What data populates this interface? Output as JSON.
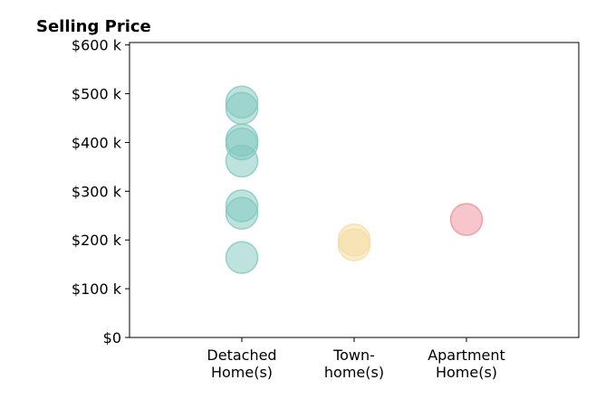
{
  "chart_data": {
    "type": "scatter",
    "title": "Selling Price",
    "xlabel": "",
    "ylabel": "",
    "categories": [
      [
        "Detached",
        "Home(s)"
      ],
      [
        "Town-",
        "home(s)"
      ],
      [
        "Apartment",
        "Home(s)"
      ]
    ],
    "xlim": [
      -1,
      3
    ],
    "ylim": [
      0,
      605000
    ],
    "yticks": [
      0,
      100000,
      200000,
      300000,
      400000,
      500000,
      600000
    ],
    "ytick_labels": [
      "$0",
      "$100 k",
      "$200 k",
      "$300 k",
      "$400 k",
      "$500 k",
      "$600 k"
    ],
    "grid": false,
    "legend": "none",
    "series": [
      {
        "category_index": 0,
        "color": "#7ec8bd",
        "values": [
          483000,
          470000,
          405000,
          397000,
          362000,
          270000,
          255000,
          164000
        ]
      },
      {
        "category_index": 1,
        "color": "#f4dc9e",
        "values": [
          200000,
          190000
        ]
      },
      {
        "category_index": 2,
        "color": "#f08c9a",
        "values": [
          242000
        ]
      }
    ]
  }
}
